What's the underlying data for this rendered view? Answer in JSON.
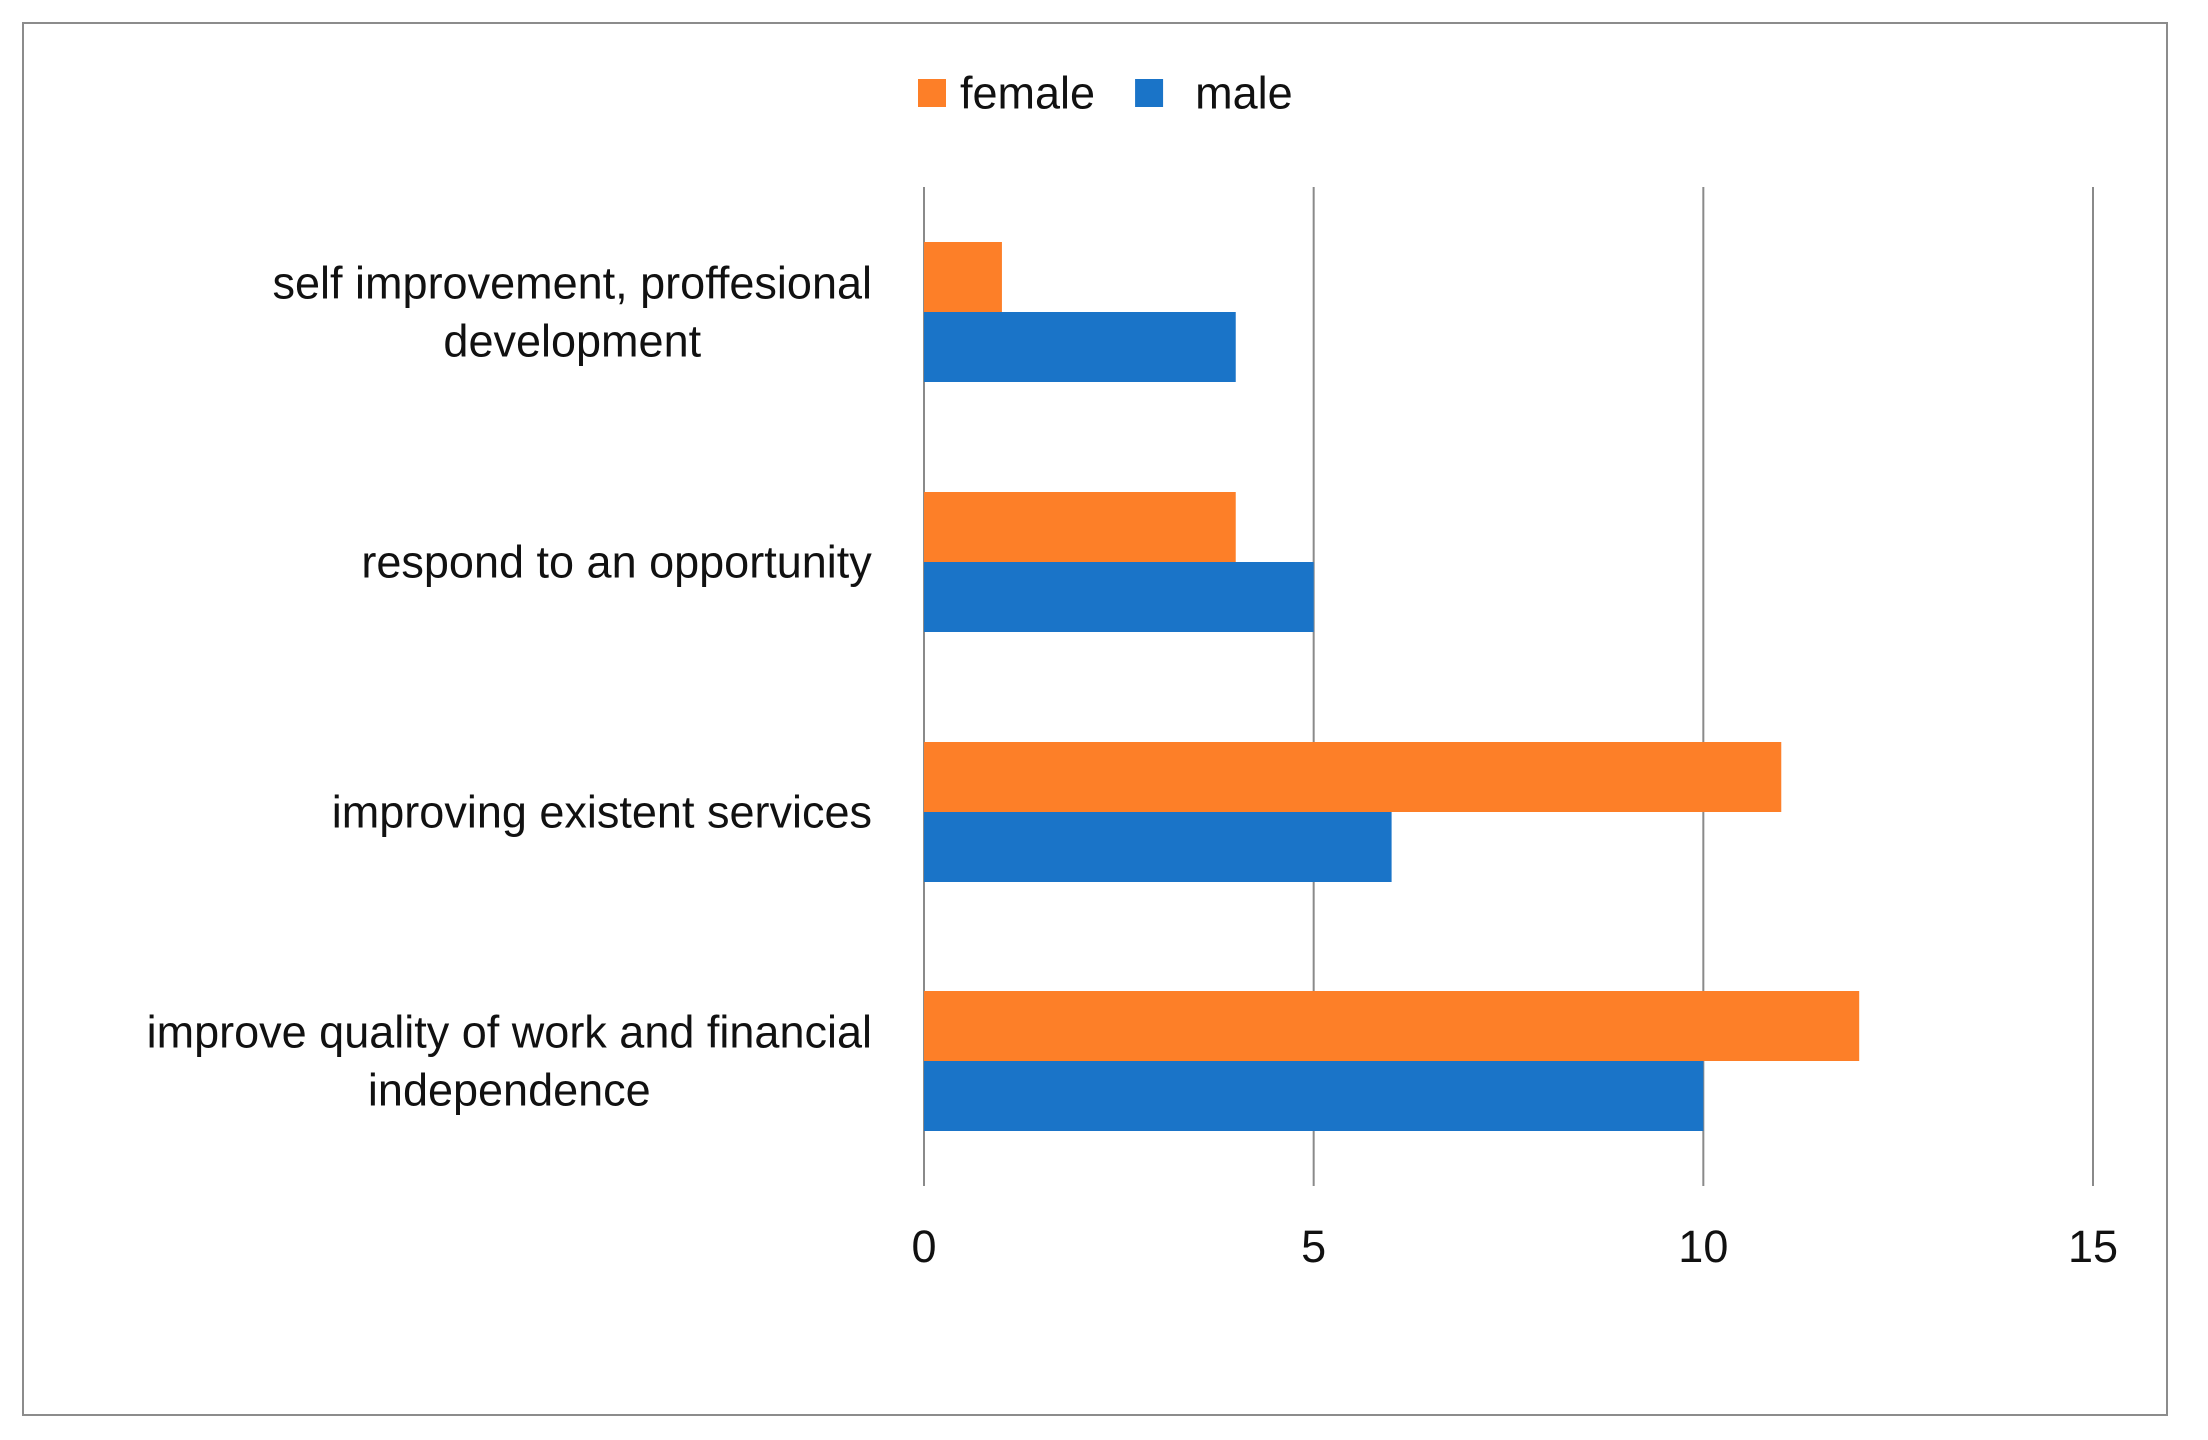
{
  "chart_data": {
    "type": "bar",
    "orientation": "horizontal",
    "categories": [
      [
        "self improvement, proffesional",
        "development"
      ],
      [
        "respond to an opportunity"
      ],
      [
        "improving existent services"
      ],
      [
        "improve quality of work and financial",
        "independence"
      ]
    ],
    "series": [
      {
        "name": "female",
        "color": "#fd7f28",
        "values": [
          1,
          4,
          11,
          12
        ]
      },
      {
        "name": "male",
        "color": "#1a74c8",
        "values": [
          4,
          5,
          6,
          10
        ]
      }
    ],
    "xlim": [
      0,
      15
    ],
    "xticks": [
      "0",
      "5",
      "10",
      "15"
    ],
    "xtick_values": [
      0,
      5,
      10,
      15
    ],
    "grid": true,
    "legend_position": "top-center",
    "title": "",
    "xlabel": "",
    "ylabel": ""
  },
  "colors": {
    "grid": "#8a8a8a",
    "frame": "#8c8c8c"
  }
}
